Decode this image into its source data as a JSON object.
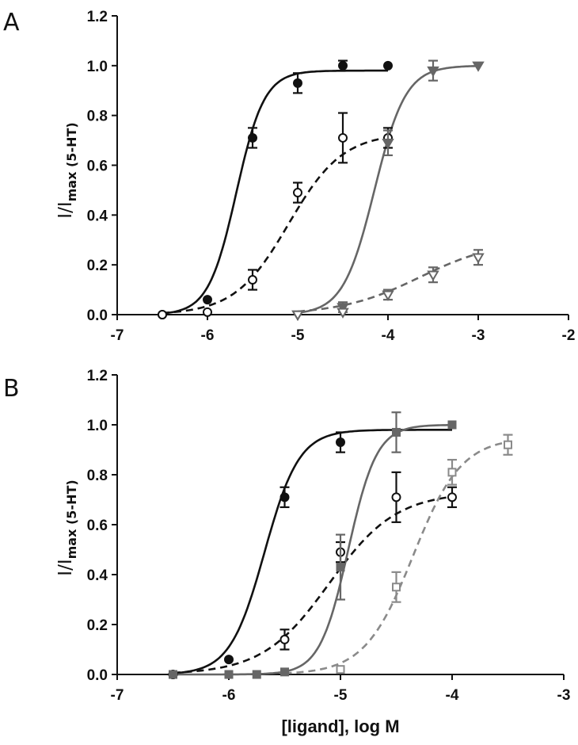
{
  "colors": {
    "black": "#111111",
    "gray": "#666666",
    "lightgray": "#8a8a8a"
  },
  "chart_data": [
    {
      "type": "scatter",
      "panel_label": "A",
      "ylabel": {
        "main": "I/I",
        "sub": "max (5-HT)"
      },
      "xlabel": "",
      "xlim": [
        -7,
        -2
      ],
      "ylim": [
        0,
        1.2
      ],
      "xticks": [
        -7,
        -6,
        -5,
        -4,
        -3,
        -2
      ],
      "yticks": [
        0.0,
        0.2,
        0.4,
        0.6,
        0.8,
        1.0,
        1.2
      ],
      "xtick_labels": [
        "-7",
        "-6",
        "-5",
        "-4",
        "-3",
        "-2"
      ],
      "ytick_labels": [
        "0.0",
        "0.2",
        "0.4",
        "0.6",
        "0.8",
        "1.0",
        "1.2"
      ],
      "grid": false,
      "series": [
        {
          "color": "#111111",
          "marker": "circle-filled",
          "line": "solid",
          "fit": {
            "bottom": 0.0,
            "top": 0.98,
            "log_ec50": -5.68,
            "hill": 2.8,
            "x_range": [
              -6.5,
              -4.0
            ]
          },
          "points": [
            {
              "x": -6.5,
              "y": 0.0,
              "err": 0.0
            },
            {
              "x": -6.0,
              "y": 0.06,
              "err": 0.0
            },
            {
              "x": -5.5,
              "y": 0.71,
              "err": 0.04
            },
            {
              "x": -5.0,
              "y": 0.93,
              "err": 0.04
            },
            {
              "x": -4.5,
              "y": 1.0,
              "err": 0.02
            },
            {
              "x": -4.0,
              "y": 1.0,
              "err": 0.0
            }
          ]
        },
        {
          "color": "#111111",
          "marker": "circle-open",
          "line": "dashed",
          "fit": {
            "bottom": 0.0,
            "top": 0.73,
            "log_ec50": -5.1,
            "hill": 1.45,
            "x_range": [
              -6.5,
              -4.0
            ]
          },
          "points": [
            {
              "x": -6.5,
              "y": 0.0,
              "err": 0.0
            },
            {
              "x": -6.0,
              "y": 0.01,
              "err": 0.0
            },
            {
              "x": -5.5,
              "y": 0.14,
              "err": 0.04
            },
            {
              "x": -5.0,
              "y": 0.49,
              "err": 0.04
            },
            {
              "x": -4.5,
              "y": 0.71,
              "err": 0.1
            },
            {
              "x": -4.0,
              "y": 0.71,
              "err": 0.04
            }
          ]
        },
        {
          "color": "#666666",
          "marker": "triangle-down-filled",
          "line": "solid",
          "fit": {
            "bottom": 0.0,
            "top": 1.0,
            "log_ec50": -4.15,
            "hill": 2.5,
            "x_range": [
              -5.0,
              -3.0
            ]
          },
          "points": [
            {
              "x": -5.0,
              "y": 0.0,
              "err": 0.0
            },
            {
              "x": -4.5,
              "y": 0.03,
              "err": 0.02
            },
            {
              "x": -4.0,
              "y": 0.69,
              "err": 0.05
            },
            {
              "x": -3.5,
              "y": 0.98,
              "err": 0.04
            },
            {
              "x": -3.0,
              "y": 1.0,
              "err": 0.0
            }
          ]
        },
        {
          "color": "#666666",
          "marker": "triangle-down-open",
          "line": "dashed",
          "fit": {
            "bottom": 0.0,
            "top": 0.3,
            "log_ec50": -3.65,
            "hill": 1.0,
            "x_range": [
              -5.0,
              -3.0
            ]
          },
          "points": [
            {
              "x": -5.0,
              "y": 0.0,
              "err": 0.0
            },
            {
              "x": -4.5,
              "y": 0.01,
              "err": 0.0
            },
            {
              "x": -4.0,
              "y": 0.08,
              "err": 0.02
            },
            {
              "x": -3.5,
              "y": 0.16,
              "err": 0.03
            },
            {
              "x": -3.0,
              "y": 0.23,
              "err": 0.03
            }
          ]
        }
      ]
    },
    {
      "type": "scatter",
      "panel_label": "B",
      "ylabel": {
        "main": "I/I",
        "sub": "max (5-HT)"
      },
      "xlabel": "[ligand], log M",
      "xlim": [
        -7,
        -3
      ],
      "ylim": [
        0,
        1.2
      ],
      "xticks": [
        -7,
        -6,
        -5,
        -4,
        -3
      ],
      "yticks": [
        0.0,
        0.2,
        0.4,
        0.6,
        0.8,
        1.0,
        1.2
      ],
      "xtick_labels": [
        "-7",
        "-6",
        "-5",
        "-4",
        "-3"
      ],
      "ytick_labels": [
        "0.0",
        "0.2",
        "0.4",
        "0.6",
        "0.8",
        "1.0",
        "1.2"
      ],
      "grid": false,
      "series": [
        {
          "color": "#111111",
          "marker": "circle-filled",
          "line": "solid",
          "fit": {
            "bottom": 0.0,
            "top": 0.98,
            "log_ec50": -5.68,
            "hill": 2.8,
            "x_range": [
              -6.5,
              -4.0
            ]
          },
          "points": [
            {
              "x": -6.5,
              "y": 0.0,
              "err": 0.0
            },
            {
              "x": -6.0,
              "y": 0.06,
              "err": 0.0
            },
            {
              "x": -5.5,
              "y": 0.71,
              "err": 0.04
            },
            {
              "x": -5.0,
              "y": 0.93,
              "err": 0.04
            }
          ]
        },
        {
          "color": "#111111",
          "marker": "circle-open",
          "line": "dashed",
          "fit": {
            "bottom": 0.0,
            "top": 0.73,
            "log_ec50": -5.1,
            "hill": 1.45,
            "x_range": [
              -6.5,
              -4.0
            ]
          },
          "points": [
            {
              "x": -6.5,
              "y": 0.0,
              "err": 0.0
            },
            {
              "x": -5.5,
              "y": 0.14,
              "err": 0.04
            },
            {
              "x": -5.0,
              "y": 0.49,
              "err": 0.04
            },
            {
              "x": -4.5,
              "y": 0.71,
              "err": 0.1
            },
            {
              "x": -4.0,
              "y": 0.71,
              "err": 0.04
            }
          ]
        },
        {
          "color": "#666666",
          "marker": "square-filled",
          "line": "solid",
          "fit": {
            "bottom": 0.0,
            "top": 1.0,
            "log_ec50": -4.93,
            "hill": 3.4,
            "x_range": [
              -6.5,
              -4.0
            ]
          },
          "points": [
            {
              "x": -6.5,
              "y": 0.0,
              "err": 0.0
            },
            {
              "x": -6.0,
              "y": 0.0,
              "err": 0.0
            },
            {
              "x": -5.75,
              "y": 0.0,
              "err": 0.0
            },
            {
              "x": -5.5,
              "y": 0.01,
              "err": 0.0
            },
            {
              "x": -5.0,
              "y": 0.43,
              "err": 0.13
            },
            {
              "x": -4.5,
              "y": 0.97,
              "err": 0.08
            },
            {
              "x": -4.0,
              "y": 1.0,
              "err": 0.0
            }
          ]
        },
        {
          "color": "#8a8a8a",
          "marker": "square-open",
          "line": "dashed",
          "fit": {
            "bottom": 0.0,
            "top": 0.95,
            "log_ec50": -4.35,
            "hill": 2.0,
            "x_range": [
              -5.5,
              -3.5
            ]
          },
          "points": [
            {
              "x": -5.0,
              "y": 0.02,
              "err": 0.0
            },
            {
              "x": -4.5,
              "y": 0.35,
              "err": 0.06
            },
            {
              "x": -4.0,
              "y": 0.81,
              "err": 0.05
            },
            {
              "x": -3.5,
              "y": 0.92,
              "err": 0.04
            }
          ]
        }
      ]
    }
  ]
}
